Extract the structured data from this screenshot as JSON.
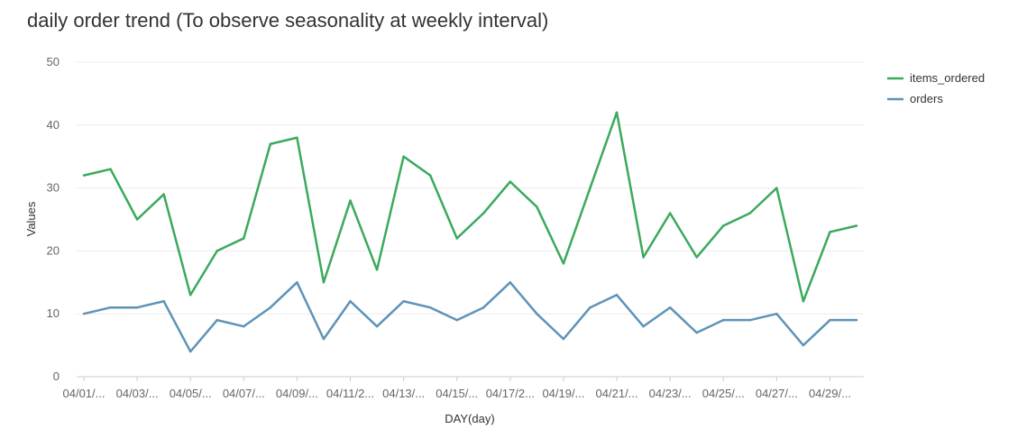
{
  "colors": {
    "items_ordered": "#3aaa5c",
    "orders": "#5e93b8",
    "grid": "#ebebeb",
    "axis": "#cccccc"
  },
  "chart_data": {
    "type": "line",
    "title": "daily order trend (To observe seasonality at weekly interval)",
    "xlabel": "DAY(day)",
    "ylabel": "Values",
    "ylim": [
      0,
      50
    ],
    "yticks": [
      0,
      10,
      20,
      30,
      40,
      50
    ],
    "grid": true,
    "legend_position": "top-right",
    "x_count": 30,
    "x_tick_labels": [
      "04/01/...",
      "04/03/...",
      "04/05/...",
      "04/07/...",
      "04/09/...",
      "04/11/2...",
      "04/13/...",
      "04/15/...",
      "04/17/2...",
      "04/19/...",
      "04/21/...",
      "04/23/...",
      "04/25/...",
      "04/27/...",
      "04/29/..."
    ],
    "series": [
      {
        "name": "items_ordered",
        "color": "#3aaa5c",
        "values": [
          32,
          33,
          25,
          29,
          13,
          20,
          22,
          37,
          38,
          15,
          28,
          17,
          35,
          32,
          22,
          26,
          31,
          27,
          18,
          30,
          42,
          19,
          26,
          19,
          24,
          26,
          30,
          12,
          23,
          24
        ]
      },
      {
        "name": "orders",
        "color": "#5e93b8",
        "values": [
          10,
          11,
          11,
          12,
          4,
          9,
          8,
          11,
          15,
          6,
          12,
          8,
          12,
          11,
          9,
          11,
          15,
          10,
          6,
          11,
          13,
          8,
          11,
          7,
          9,
          9,
          10,
          5,
          9,
          9
        ]
      }
    ]
  }
}
